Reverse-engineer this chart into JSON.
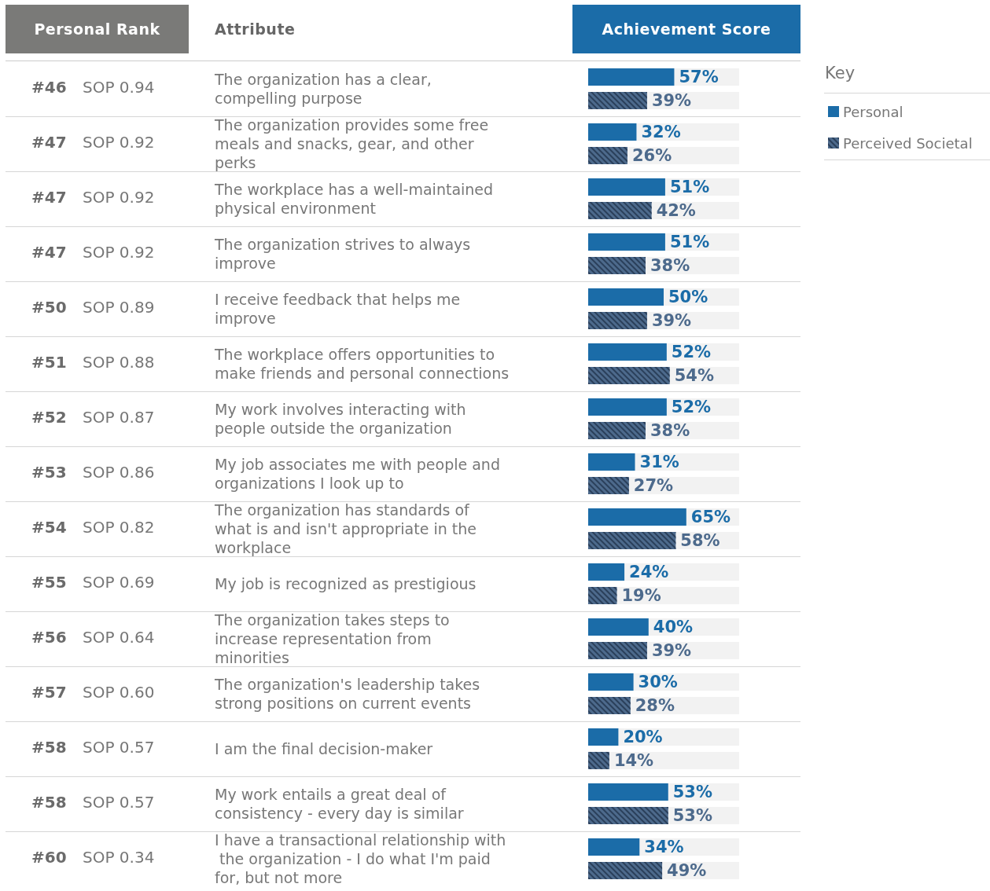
{
  "chart_data": {
    "type": "bar",
    "orientation": "horizontal",
    "legend": "right",
    "legend_title": "Key",
    "tick_labels": "y",
    "xlim": [
      0,
      100
    ],
    "categories": [
      "The organization has a clear, compelling purpose",
      "The organization provides some free meals and snacks, gear, and other perks",
      "The workplace has a well-maintained physical environment",
      "The organization strives to always improve",
      "I receive feedback that helps me improve",
      "The workplace offers opportunities to make friends and personal connections",
      "My work involves interacting with people outside the organization",
      "My job associates me with people and organizations I look up to",
      "The organization has standards of what is and isn't appropriate in the workplace",
      "My job is recognized as prestigious",
      "The organization takes steps to increase representation from minorities",
      "The organization's leadership takes strong positions on current events",
      "I am the final decision-maker",
      "My work entails a great deal of consistency - every day is similar",
      "I have a transactional relationship with the organization - I do what I'm paid for, but not more"
    ],
    "series": [
      {
        "name": "Personal",
        "color": "#1b6ca8",
        "values": [
          57,
          32,
          51,
          51,
          50,
          52,
          52,
          31,
          65,
          24,
          40,
          30,
          20,
          53,
          34
        ],
        "value_labels": [
          "57%",
          "32%",
          "51%",
          "51%",
          "50%",
          "52%",
          "52%",
          "31%",
          "65%",
          "24%",
          "40%",
          "30%",
          "20%",
          "53%",
          "34%"
        ]
      },
      {
        "name": "Perceived Societal",
        "color": "#4d6a8c",
        "values": [
          39,
          26,
          42,
          38,
          39,
          54,
          38,
          27,
          58,
          19,
          39,
          28,
          14,
          53,
          49
        ],
        "value_labels": [
          "39%",
          "26%",
          "42%",
          "38%",
          "39%",
          "54%",
          "38%",
          "27%",
          "58%",
          "19%",
          "39%",
          "28%",
          "14%",
          "53%",
          "49%"
        ]
      }
    ],
    "annotations": [
      "Personal Rank",
      "Attribute",
      "Achievement Score",
      "#46",
      "SOP 0.94",
      "#47",
      "SOP 0.92",
      "#47",
      "SOP 0.92",
      "#47",
      "SOP 0.92",
      "#50",
      "SOP 0.89",
      "#51",
      "SOP 0.88",
      "#52",
      "SOP 0.87",
      "#53",
      "SOP 0.86",
      "#54",
      "SOP 0.82",
      "#55",
      "SOP 0.69",
      "#56",
      "SOP 0.64",
      "#57",
      "SOP 0.60",
      "#58",
      "SOP 0.57",
      "#58",
      "SOP 0.57",
      "#60",
      "SOP 0.34"
    ]
  }
}
